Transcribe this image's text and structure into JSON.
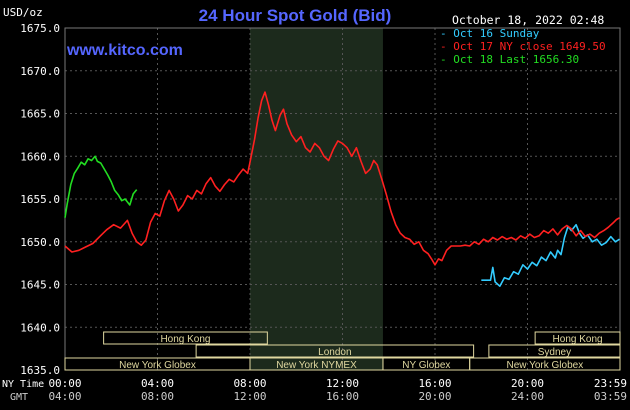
{
  "header": {
    "units": "USD/oz",
    "title": "24 Hour Spot Gold (Bid)",
    "datetime": "October 18, 2022 02:48",
    "watermark": "www.kitco.com"
  },
  "legend": [
    {
      "label": "Oct 16 Sunday",
      "color": "#33ccff"
    },
    {
      "label": "Oct 17 NY close 1649.50",
      "color": "#ff2020"
    },
    {
      "label": "Oct 18 Last 1656.30",
      "color": "#22dd22"
    }
  ],
  "sessions": {
    "row1": [
      {
        "label": "Hong Kong",
        "from": 1.67,
        "to": 8.75
      },
      {
        "label": "Hong Kong",
        "from": 20.33,
        "to": 24.0
      }
    ],
    "row2": [
      {
        "label": "London",
        "from": 5.67,
        "to": 17.67
      },
      {
        "label": "Sydney",
        "from": 18.33,
        "to": 24.0
      }
    ],
    "row3": [
      {
        "label": "New York Globex",
        "from": 0.0,
        "to": 8.0
      },
      {
        "label": "New York NYMEX",
        "from": 8.0,
        "to": 13.75
      },
      {
        "label": "NY Globex",
        "from": 13.75,
        "to": 17.5
      },
      {
        "label": "New York Globex",
        "from": 17.5,
        "to": 24.0
      }
    ]
  },
  "x_axis": {
    "row_label_ny": "NY Time",
    "row_label_gmt": "GMT",
    "ny_ticks": [
      "00:00",
      "04:00",
      "08:00",
      "12:00",
      "16:00",
      "20:00",
      "23:59"
    ],
    "gmt_ticks": [
      "04:00",
      "08:00",
      "12:00",
      "16:00",
      "20:00",
      "24:00",
      "03:59"
    ]
  },
  "colors": {
    "background": "#000000",
    "grid": "#555555",
    "title": "#5566ff",
    "nymex_shade": "#1c2a1c",
    "session_box": "#e0d8a0",
    "sunday": "#33ccff",
    "close": "#ff2020",
    "last": "#22dd22"
  },
  "chart_data": {
    "type": "line",
    "title": "24 Hour Spot Gold (Bid)",
    "ylabel": "USD/oz",
    "ylim": [
      1635.0,
      1675.0
    ],
    "y_ticks": [
      1635.0,
      1640.0,
      1645.0,
      1650.0,
      1655.0,
      1660.0,
      1665.0,
      1670.0,
      1675.0
    ],
    "xlim": [
      0,
      24
    ],
    "grid": true,
    "legend_position": "top-right",
    "series": [
      {
        "name": "Oct 16 Sunday",
        "color": "#33ccff",
        "points": [
          [
            18.0,
            1645.5
          ],
          [
            18.4,
            1645.5
          ],
          [
            18.5,
            1647.0
          ],
          [
            18.6,
            1645.3
          ],
          [
            18.8,
            1644.8
          ],
          [
            19.0,
            1645.8
          ],
          [
            19.2,
            1645.6
          ],
          [
            19.4,
            1646.5
          ],
          [
            19.6,
            1646.2
          ],
          [
            19.8,
            1647.3
          ],
          [
            20.0,
            1646.8
          ],
          [
            20.2,
            1647.6
          ],
          [
            20.4,
            1647.2
          ],
          [
            20.6,
            1648.2
          ],
          [
            20.8,
            1647.8
          ],
          [
            21.0,
            1648.8
          ],
          [
            21.2,
            1648.1
          ],
          [
            21.3,
            1649.0
          ],
          [
            21.45,
            1648.5
          ],
          [
            21.6,
            1650.5
          ],
          [
            21.75,
            1651.8
          ],
          [
            21.9,
            1651.3
          ],
          [
            22.1,
            1652.0
          ],
          [
            22.25,
            1651.0
          ],
          [
            22.4,
            1650.4
          ],
          [
            22.6,
            1650.8
          ],
          [
            22.8,
            1650.0
          ],
          [
            23.0,
            1650.3
          ],
          [
            23.2,
            1649.6
          ],
          [
            23.4,
            1649.9
          ],
          [
            23.6,
            1650.6
          ],
          [
            23.8,
            1650.0
          ],
          [
            23.98,
            1650.3
          ]
        ]
      },
      {
        "name": "Oct 17 NY close 1649.50",
        "color": "#ff2020",
        "points": [
          [
            0.0,
            1649.5
          ],
          [
            0.3,
            1648.8
          ],
          [
            0.6,
            1649.0
          ],
          [
            0.9,
            1649.4
          ],
          [
            1.2,
            1649.8
          ],
          [
            1.5,
            1650.6
          ],
          [
            1.8,
            1651.4
          ],
          [
            2.1,
            1652.0
          ],
          [
            2.4,
            1651.6
          ],
          [
            2.7,
            1652.5
          ],
          [
            2.9,
            1651.0
          ],
          [
            3.1,
            1650.0
          ],
          [
            3.3,
            1649.6
          ],
          [
            3.5,
            1650.2
          ],
          [
            3.7,
            1652.3
          ],
          [
            3.9,
            1653.3
          ],
          [
            4.1,
            1653.0
          ],
          [
            4.3,
            1654.8
          ],
          [
            4.5,
            1656.0
          ],
          [
            4.7,
            1655.0
          ],
          [
            4.9,
            1653.6
          ],
          [
            5.1,
            1654.3
          ],
          [
            5.3,
            1655.4
          ],
          [
            5.5,
            1655.0
          ],
          [
            5.7,
            1656.0
          ],
          [
            5.9,
            1655.6
          ],
          [
            6.1,
            1656.8
          ],
          [
            6.3,
            1657.5
          ],
          [
            6.5,
            1656.5
          ],
          [
            6.7,
            1655.9
          ],
          [
            6.9,
            1656.7
          ],
          [
            7.1,
            1657.3
          ],
          [
            7.3,
            1657.0
          ],
          [
            7.5,
            1657.8
          ],
          [
            7.7,
            1658.5
          ],
          [
            7.9,
            1658.0
          ],
          [
            8.0,
            1659.3
          ],
          [
            8.2,
            1662.0
          ],
          [
            8.35,
            1664.5
          ],
          [
            8.5,
            1666.5
          ],
          [
            8.65,
            1667.5
          ],
          [
            8.8,
            1666.0
          ],
          [
            8.95,
            1664.2
          ],
          [
            9.1,
            1663.0
          ],
          [
            9.3,
            1664.8
          ],
          [
            9.45,
            1665.5
          ],
          [
            9.6,
            1663.8
          ],
          [
            9.8,
            1662.5
          ],
          [
            10.0,
            1661.7
          ],
          [
            10.2,
            1662.3
          ],
          [
            10.4,
            1661.0
          ],
          [
            10.6,
            1660.5
          ],
          [
            10.8,
            1661.5
          ],
          [
            11.0,
            1661.0
          ],
          [
            11.2,
            1660.0
          ],
          [
            11.4,
            1659.5
          ],
          [
            11.6,
            1660.8
          ],
          [
            11.8,
            1661.8
          ],
          [
            12.0,
            1661.5
          ],
          [
            12.2,
            1661.0
          ],
          [
            12.4,
            1660.0
          ],
          [
            12.6,
            1661.0
          ],
          [
            12.8,
            1659.4
          ],
          [
            13.0,
            1658.0
          ],
          [
            13.2,
            1658.5
          ],
          [
            13.35,
            1659.5
          ],
          [
            13.5,
            1659.0
          ],
          [
            13.7,
            1657.3
          ],
          [
            13.9,
            1655.5
          ],
          [
            14.1,
            1653.5
          ],
          [
            14.3,
            1652.0
          ],
          [
            14.5,
            1651.0
          ],
          [
            14.7,
            1650.5
          ],
          [
            14.9,
            1650.3
          ],
          [
            15.1,
            1649.7
          ],
          [
            15.3,
            1650.0
          ],
          [
            15.5,
            1649.0
          ],
          [
            15.7,
            1648.6
          ],
          [
            15.85,
            1648.0
          ],
          [
            16.0,
            1647.3
          ],
          [
            16.15,
            1648.0
          ],
          [
            16.3,
            1647.8
          ],
          [
            16.5,
            1649.0
          ],
          [
            16.7,
            1649.5
          ],
          [
            16.9,
            1649.5
          ],
          [
            17.1,
            1649.5
          ],
          [
            17.3,
            1649.6
          ],
          [
            17.5,
            1649.5
          ],
          [
            17.7,
            1650.0
          ],
          [
            17.9,
            1649.7
          ],
          [
            18.1,
            1650.3
          ],
          [
            18.3,
            1650.0
          ],
          [
            18.5,
            1650.5
          ],
          [
            18.7,
            1650.2
          ],
          [
            18.9,
            1650.6
          ],
          [
            19.1,
            1650.3
          ],
          [
            19.3,
            1650.5
          ],
          [
            19.5,
            1650.2
          ],
          [
            19.7,
            1650.7
          ],
          [
            19.9,
            1650.4
          ],
          [
            20.1,
            1650.9
          ],
          [
            20.3,
            1650.5
          ],
          [
            20.5,
            1650.7
          ],
          [
            20.7,
            1651.3
          ],
          [
            20.9,
            1651.0
          ],
          [
            21.1,
            1651.5
          ],
          [
            21.3,
            1650.8
          ],
          [
            21.5,
            1651.5
          ],
          [
            21.7,
            1651.9
          ],
          [
            21.9,
            1651.5
          ],
          [
            22.1,
            1650.7
          ],
          [
            22.3,
            1651.3
          ],
          [
            22.5,
            1650.6
          ],
          [
            22.7,
            1650.9
          ],
          [
            22.9,
            1650.5
          ],
          [
            23.1,
            1651.0
          ],
          [
            23.3,
            1651.3
          ],
          [
            23.5,
            1651.7
          ],
          [
            23.7,
            1652.2
          ],
          [
            23.85,
            1652.6
          ],
          [
            23.98,
            1652.8
          ]
        ]
      },
      {
        "name": "Oct 18 Last 1656.30",
        "color": "#22dd22",
        "points": [
          [
            0.0,
            1652.8
          ],
          [
            0.1,
            1654.5
          ],
          [
            0.25,
            1656.7
          ],
          [
            0.4,
            1658.0
          ],
          [
            0.55,
            1658.6
          ],
          [
            0.7,
            1659.3
          ],
          [
            0.85,
            1659.0
          ],
          [
            1.0,
            1659.7
          ],
          [
            1.15,
            1659.5
          ],
          [
            1.3,
            1660.0
          ],
          [
            1.4,
            1659.4
          ],
          [
            1.55,
            1659.2
          ],
          [
            1.7,
            1658.5
          ],
          [
            1.85,
            1657.8
          ],
          [
            2.0,
            1657.0
          ],
          [
            2.15,
            1656.0
          ],
          [
            2.3,
            1655.5
          ],
          [
            2.45,
            1654.8
          ],
          [
            2.6,
            1655.0
          ],
          [
            2.8,
            1654.3
          ],
          [
            2.95,
            1655.6
          ],
          [
            3.1,
            1656.1
          ]
        ]
      }
    ]
  }
}
